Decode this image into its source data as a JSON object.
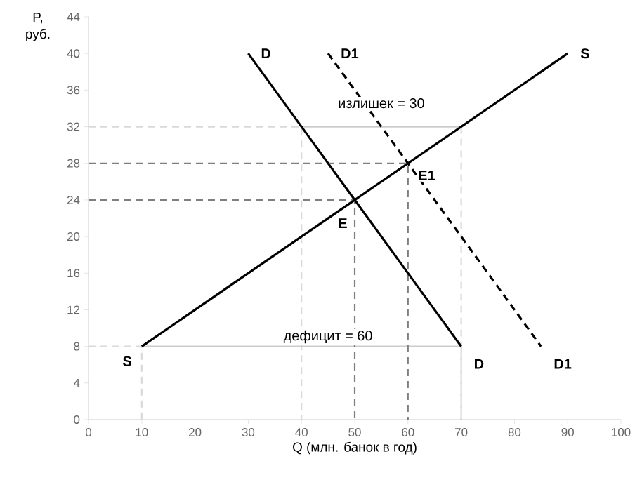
{
  "chart_data": {
    "type": "line",
    "xlabel": "Q (млн. банок в год)",
    "ylabel": "P, руб.",
    "xlim": [
      0,
      100
    ],
    "ylim": [
      0,
      44
    ],
    "xticks": [
      0,
      10,
      20,
      30,
      40,
      50,
      60,
      70,
      80,
      90,
      100
    ],
    "yticks": [
      0,
      4,
      8,
      12,
      16,
      20,
      24,
      28,
      32,
      36,
      40,
      44
    ],
    "series": [
      {
        "color": "#d9d9d9",
        "line_style": "dashed",
        "x": [
          0,
          40,
          40
        ],
        "values": [
          32,
          32,
          0
        ]
      },
      {
        "color": "#d9d9d9",
        "line_style": "dashed",
        "x": [
          70,
          70
        ],
        "values": [
          32,
          0
        ]
      },
      {
        "color": "#d9d9d9",
        "line_style": "dashed",
        "x": [
          0,
          10,
          10
        ],
        "values": [
          8,
          8,
          0
        ]
      },
      {
        "color": "#d9d9d9",
        "line_style": "dashed",
        "x": [
          70,
          70
        ],
        "values": [
          8,
          0
        ]
      },
      {
        "color": "#cccccc",
        "line_style": "solid",
        "x": [
          40,
          70
        ],
        "values": [
          32,
          32
        ]
      },
      {
        "color": "#cccccc",
        "line_style": "solid",
        "x": [
          10,
          70
        ],
        "values": [
          8,
          8
        ]
      },
      {
        "color": "#7f7f7f",
        "line_style": "dashed",
        "x": [
          0,
          60,
          60
        ],
        "values": [
          28,
          28,
          0
        ]
      },
      {
        "color": "#7f7f7f",
        "line_style": "dashed",
        "x": [
          0,
          50,
          50
        ],
        "values": [
          24,
          24,
          0
        ]
      },
      {
        "name": "S",
        "color": "#000000",
        "line_style": "solid",
        "x": [
          10,
          90
        ],
        "values": [
          8,
          40
        ]
      },
      {
        "name": "D",
        "color": "#000000",
        "line_style": "solid",
        "x": [
          30,
          70
        ],
        "values": [
          40,
          8
        ]
      },
      {
        "name": "D1",
        "color": "#000000",
        "line_style": "dashed",
        "x": [
          45,
          85
        ],
        "values": [
          40,
          8
        ]
      }
    ],
    "annotations": [
      {
        "text": "E",
        "x": 50,
        "y": 24
      },
      {
        "text": "E1",
        "x": 60,
        "y": 28
      },
      {
        "text": "излишек = 30",
        "x": 55,
        "y": 32
      },
      {
        "text": "дефицит = 60",
        "x": 45,
        "y": 8
      }
    ]
  }
}
